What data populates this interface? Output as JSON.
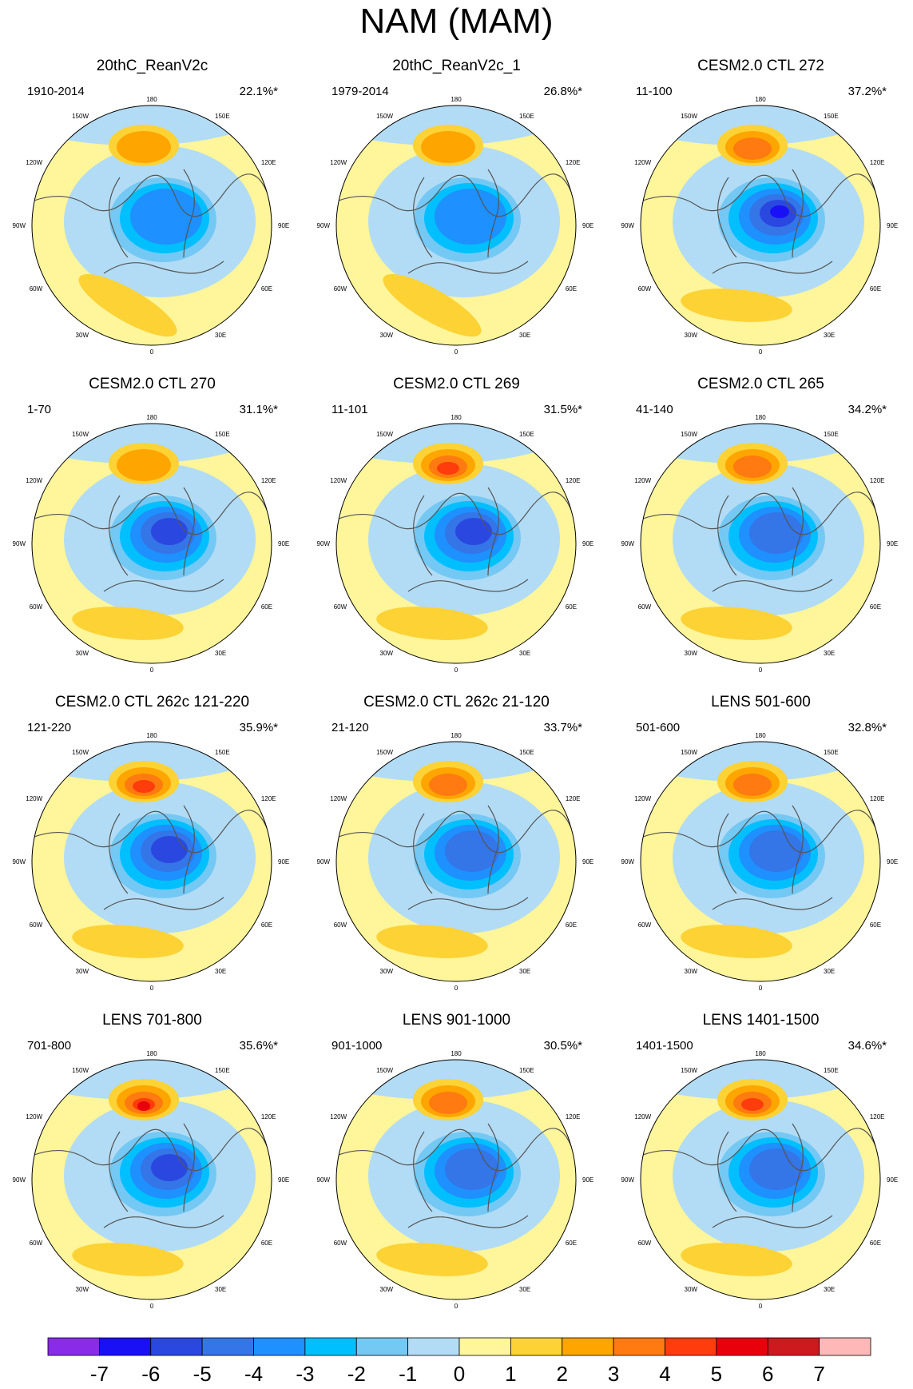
{
  "title": "NAM (MAM)",
  "chart_data": {
    "type": "heatmap",
    "projection": "north polar stereographic",
    "longitude_labels": [
      "180",
      "150W",
      "150E",
      "120W",
      "120E",
      "90W",
      "90E",
      "60W",
      "60E",
      "30W",
      "30E",
      "0"
    ],
    "colorbar": {
      "labels": [
        "-7",
        "-6",
        "-5",
        "-4",
        "-3",
        "-2",
        "-1",
        "0",
        "1",
        "2",
        "3",
        "4",
        "5",
        "6",
        "7"
      ],
      "colors": [
        "#8a2be8",
        "#1a10f5",
        "#2a48e0",
        "#3475e8",
        "#1e90ff",
        "#00bfff",
        "#74c8f4",
        "#b2dcf5",
        "#fff59a",
        "#fcd235",
        "#ffa500",
        "#ff7a10",
        "#ff3c0c",
        "#e8000a",
        "#cc1a1f",
        "#ffb8b8"
      ]
    },
    "panels": [
      {
        "title": "20thC_ReanV2c",
        "years": "1910-2014",
        "variance": "22.1%*",
        "low_peak": -4,
        "high_peak": 2
      },
      {
        "title": "20thC_ReanV2c_1",
        "years": "1979-2014",
        "variance": "26.8%*",
        "low_peak": -4,
        "high_peak": 2
      },
      {
        "title": "CESM2.0 CTL 272",
        "years": "11-100",
        "variance": "37.2%*",
        "low_peak": -7,
        "high_peak": 3
      },
      {
        "title": "CESM2.0 CTL 270",
        "years": "1-70",
        "variance": "31.1%*",
        "low_peak": -6,
        "high_peak": 2
      },
      {
        "title": "CESM2.0 CTL 269",
        "years": "11-101",
        "variance": "31.5%*",
        "low_peak": -6,
        "high_peak": 4
      },
      {
        "title": "CESM2.0 CTL 265",
        "years": "41-140",
        "variance": "34.2%*",
        "low_peak": -5,
        "high_peak": 3
      },
      {
        "title": "CESM2.0 CTL 262c 121-220",
        "years": "121-220",
        "variance": "35.9%*",
        "low_peak": -6,
        "high_peak": 4
      },
      {
        "title": "CESM2.0 CTL 262c 21-120",
        "years": "21-120",
        "variance": "33.7%*",
        "low_peak": -5,
        "high_peak": 3
      },
      {
        "title": "LENS 501-600",
        "years": "501-600",
        "variance": "32.8%*",
        "low_peak": -5,
        "high_peak": 3
      },
      {
        "title": "LENS 701-800",
        "years": "701-800",
        "variance": "35.6%*",
        "low_peak": -6,
        "high_peak": 5
      },
      {
        "title": "LENS 901-1000",
        "years": "901-1000",
        "variance": "30.5%*",
        "low_peak": -5,
        "high_peak": 3
      },
      {
        "title": "LENS 1401-1500",
        "years": "1401-1500",
        "variance": "34.6%*",
        "low_peak": -5,
        "high_peak": 4
      }
    ]
  }
}
